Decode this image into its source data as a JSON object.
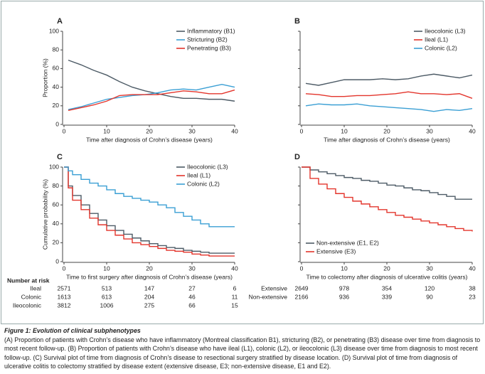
{
  "chart_data": [
    {
      "type": "line",
      "panel": "A",
      "ylabel": "Proportion (%)",
      "xlabel": "Time after diagnosis of Crohn’s disease (years)",
      "legend": "upper right",
      "x": [
        1,
        4,
        7,
        10,
        13,
        16,
        19,
        22,
        25,
        28,
        31,
        34,
        37,
        40
      ],
      "series": [
        {
          "name": "Inflammatory (B1)",
          "color": "#4d5b66",
          "values": [
            69,
            64,
            58,
            53,
            46,
            40,
            36,
            33,
            30,
            28,
            28,
            27,
            27,
            25
          ]
        },
        {
          "name": "Stricturing (B2)",
          "color": "#3a9fd4",
          "values": [
            16,
            19,
            23,
            27,
            29,
            31,
            32,
            34,
            37,
            38,
            37,
            40,
            43,
            40
          ]
        },
        {
          "name": "Penetrating (B3)",
          "color": "#e3352c",
          "values": [
            15,
            18,
            21,
            25,
            31,
            32,
            32,
            32,
            34,
            36,
            35,
            33,
            33,
            37
          ]
        }
      ],
      "xlim": [
        0,
        40
      ],
      "ylim": [
        0,
        100
      ],
      "xticks": [
        0,
        10,
        20,
        30,
        40
      ],
      "yticks": [
        0,
        20,
        40,
        60,
        80,
        100
      ],
      "ytick_labels": true
    },
    {
      "type": "line",
      "panel": "B",
      "xlabel": "Time after diagnosis of Crohn’s disease (years)",
      "legend": "upper right",
      "x": [
        1,
        4,
        7,
        10,
        13,
        16,
        19,
        22,
        25,
        28,
        31,
        34,
        37,
        40
      ],
      "series": [
        {
          "name": "Ileocolonic (L3)",
          "color": "#4d5b66",
          "values": [
            44,
            42,
            45,
            48,
            48,
            48,
            49,
            48,
            49,
            52,
            54,
            52,
            50,
            53
          ]
        },
        {
          "name": "Ileal (L1)",
          "color": "#e3352c",
          "values": [
            33,
            32,
            30,
            30,
            31,
            31,
            32,
            33,
            35,
            33,
            33,
            32,
            33,
            28
          ]
        },
        {
          "name": "Colonic (L2)",
          "color": "#3a9fd4",
          "values": [
            20,
            22,
            21,
            21,
            22,
            20,
            19,
            18,
            17,
            16,
            14,
            16,
            15,
            17
          ]
        }
      ],
      "xlim": [
        0,
        40
      ],
      "ylim": [
        0,
        100
      ],
      "xticks": [
        0,
        10,
        20,
        30,
        40
      ],
      "yticks": [
        0,
        20,
        40,
        60,
        80,
        100
      ],
      "ytick_labels": false
    },
    {
      "type": "step",
      "panel": "C",
      "ylabel": "Cumulative probability (%)",
      "xlabel": "Time to first surgery after diagnosis of Crohn’s disease (years)",
      "legend": "upper right",
      "x": [
        0,
        1,
        2,
        4,
        6,
        8,
        10,
        12,
        14,
        16,
        18,
        20,
        22,
        24,
        26,
        28,
        30,
        32,
        34,
        40
      ],
      "series": [
        {
          "name": "Ileocolonic (L3)",
          "color": "#4d5b66",
          "values": [
            100,
            80,
            70,
            60,
            51,
            44,
            38,
            33,
            29,
            25,
            22,
            19,
            17,
            15,
            14,
            12,
            11,
            10,
            9,
            9
          ]
        },
        {
          "name": "Ileal (L1)",
          "color": "#e3352c",
          "values": [
            100,
            78,
            65,
            55,
            46,
            39,
            33,
            28,
            24,
            20,
            18,
            16,
            14,
            12,
            11,
            10,
            8,
            7,
            6,
            6
          ]
        },
        {
          "name": "Colonic (L2)",
          "color": "#3a9fd4",
          "values": [
            100,
            96,
            92,
            87,
            83,
            80,
            76,
            72,
            69,
            67,
            65,
            63,
            60,
            57,
            52,
            48,
            44,
            40,
            37,
            37
          ]
        }
      ],
      "xlim": [
        0,
        40
      ],
      "ylim": [
        0,
        100
      ],
      "xticks": [
        0,
        10,
        20,
        30,
        40
      ],
      "yticks": [
        0,
        20,
        40,
        60,
        80,
        100
      ],
      "ytick_labels": true,
      "number_at_risk": {
        "title": "Number at risk",
        "rows": [
          {
            "name": "Ileal",
            "values": [
              2571,
              513,
              147,
              27,
              6
            ]
          },
          {
            "name": "Colonic",
            "values": [
              1613,
              613,
              204,
              46,
              11
            ]
          },
          {
            "name": "Ileocolonic",
            "values": [
              3812,
              1006,
              275,
              66,
              15
            ]
          }
        ]
      }
    },
    {
      "type": "step",
      "panel": "D",
      "xlabel": "Time to colectomy after diagnosis of ulcerative colitis (years)",
      "legend": "lower left",
      "x": [
        0,
        2,
        4,
        6,
        8,
        10,
        12,
        14,
        16,
        18,
        20,
        22,
        24,
        26,
        28,
        30,
        32,
        34,
        36,
        38,
        40
      ],
      "series": [
        {
          "name": "Non-extensive (E1, E2)",
          "color": "#4d5b66",
          "values": [
            100,
            97,
            95,
            93,
            91,
            89,
            88,
            86,
            85,
            83,
            81,
            80,
            78,
            76,
            75,
            73,
            71,
            69,
            66,
            66,
            66
          ]
        },
        {
          "name": "Extensive (E3)",
          "color": "#e3352c",
          "values": [
            100,
            88,
            82,
            77,
            72,
            68,
            64,
            61,
            58,
            55,
            52,
            49,
            47,
            45,
            43,
            41,
            39,
            37,
            35,
            33,
            32
          ]
        }
      ],
      "xlim": [
        0,
        40
      ],
      "ylim": [
        0,
        100
      ],
      "xticks": [
        0,
        10,
        20,
        30,
        40
      ],
      "yticks": [
        0,
        20,
        40,
        60,
        80,
        100
      ],
      "ytick_labels": false,
      "number_at_risk": {
        "rows": [
          {
            "name": "Extensive",
            "values": [
              2649,
              978,
              354,
              120,
              38
            ]
          },
          {
            "name": "Non-extensive",
            "values": [
              2166,
              936,
              339,
              90,
              23
            ]
          }
        ]
      }
    }
  ],
  "caption": {
    "title": "Figure 1: Evolution of clinical subphenotypes",
    "text": "(A) Proportion of patients with Crohn’s disease who have inflammatory (Montreal classification B1), stricturing (B2), or penetrating (B3) disease over time from diagnosis to most recent follow-up. (B) Proportion of patients with Crohn’s disease who have ileal (L1), colonic (L2), or ileocolonic (L3) disease over time from diagnosis to most recent follow-up. (C) Survival plot of time from diagnosis of Crohn’s disease to resectional surgery stratified by disease location. (D) Survival plot of time from diagnosis of ulcerative colitis to colectomy stratified by disease extent (extensive disease, E3; non-extensive disease, E1 and E2)."
  }
}
